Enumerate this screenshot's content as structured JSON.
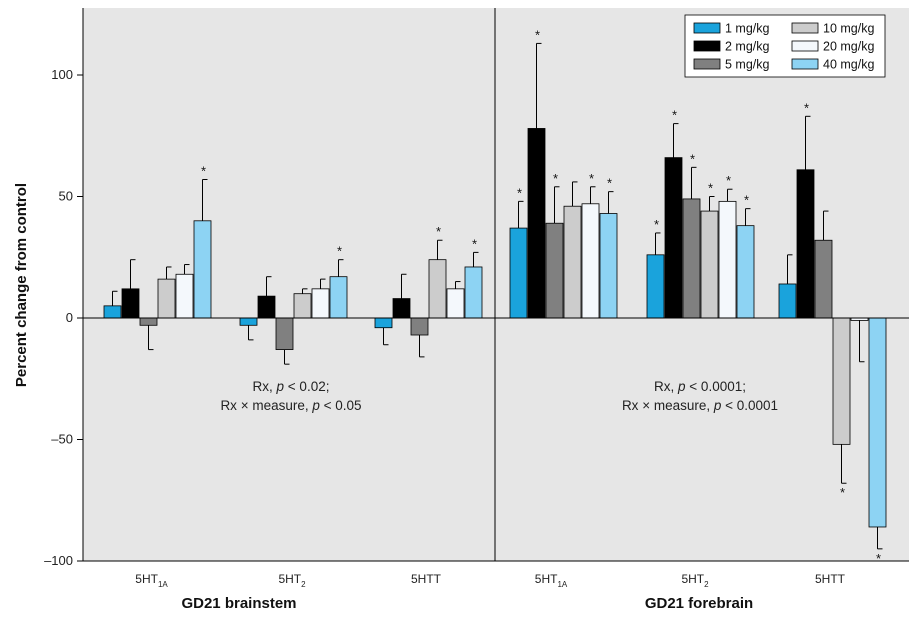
{
  "chart_data": {
    "type": "bar",
    "ylabel": "Percent change from control",
    "ylim": [
      -100,
      130
    ],
    "yticks": [
      100,
      50,
      0,
      -50,
      -100
    ],
    "ytick_labels": [
      "100",
      "50",
      "0",
      "–50",
      "–100"
    ],
    "grid": false,
    "legend_position": "top-right",
    "series": [
      {
        "name": "1 mg/kg",
        "color": "#1aa3dc"
      },
      {
        "name": "2 mg/kg",
        "color": "#000000"
      },
      {
        "name": "5 mg/kg",
        "color": "#808080"
      },
      {
        "name": "10 mg/kg",
        "color": "#cccccc"
      },
      {
        "name": "20 mg/kg",
        "color": "#f4f8fc"
      },
      {
        "name": "40 mg/kg",
        "color": "#8dd3f3"
      }
    ],
    "panels": [
      {
        "title": "GD21 brainstem",
        "annotation_line1_prefix": "Rx, ",
        "annotation_line1_p": "p",
        "annotation_line1_suffix": " < 0.02;",
        "annotation_line2_prefix": "Rx × measure, ",
        "annotation_line2_p": "p",
        "annotation_line2_suffix": " < 0.05",
        "groups": [
          {
            "label": "5HT",
            "sub": "1A",
            "values": [
              5,
              12,
              -3,
              16,
              18,
              40
            ],
            "errors": [
              6,
              12,
              10,
              5,
              4,
              17
            ],
            "sig": [
              false,
              false,
              false,
              false,
              false,
              true
            ]
          },
          {
            "label": "5HT",
            "sub": "2",
            "values": [
              -3,
              9,
              -13,
              10,
              12,
              17
            ],
            "errors": [
              6,
              8,
              6,
              2,
              4,
              7
            ],
            "sig": [
              false,
              false,
              false,
              false,
              false,
              true
            ]
          },
          {
            "label": "5HTT",
            "sub": "",
            "values": [
              -4,
              8,
              -7,
              24,
              12,
              21
            ],
            "errors": [
              7,
              10,
              9,
              8,
              3,
              6
            ],
            "sig": [
              false,
              false,
              false,
              true,
              false,
              true
            ]
          }
        ]
      },
      {
        "title": "GD21 forebrain",
        "annotation_line1_prefix": "Rx, ",
        "annotation_line1_p": "p",
        "annotation_line1_suffix": " < 0.0001;",
        "annotation_line2_prefix": "Rx × measure, ",
        "annotation_line2_p": "p",
        "annotation_line2_suffix": " < 0.0001",
        "groups": [
          {
            "label": "5HT",
            "sub": "1A",
            "values": [
              37,
              78,
              39,
              46,
              47,
              43
            ],
            "errors": [
              11,
              35,
              15,
              10,
              7,
              9
            ],
            "sig": [
              true,
              true,
              true,
              false,
              true,
              true
            ]
          },
          {
            "label": "5HT",
            "sub": "2",
            "values": [
              26,
              66,
              49,
              44,
              48,
              38
            ],
            "errors": [
              9,
              14,
              13,
              6,
              5,
              7
            ],
            "sig": [
              true,
              true,
              true,
              true,
              true,
              true
            ]
          },
          {
            "label": "5HTT",
            "sub": "",
            "values": [
              14,
              61,
              32,
              -52,
              -1,
              -86
            ],
            "errors": [
              12,
              22,
              12,
              16,
              17,
              9
            ],
            "sig": [
              false,
              true,
              false,
              true,
              false,
              true
            ]
          }
        ]
      }
    ],
    "significance_marker": "*"
  }
}
